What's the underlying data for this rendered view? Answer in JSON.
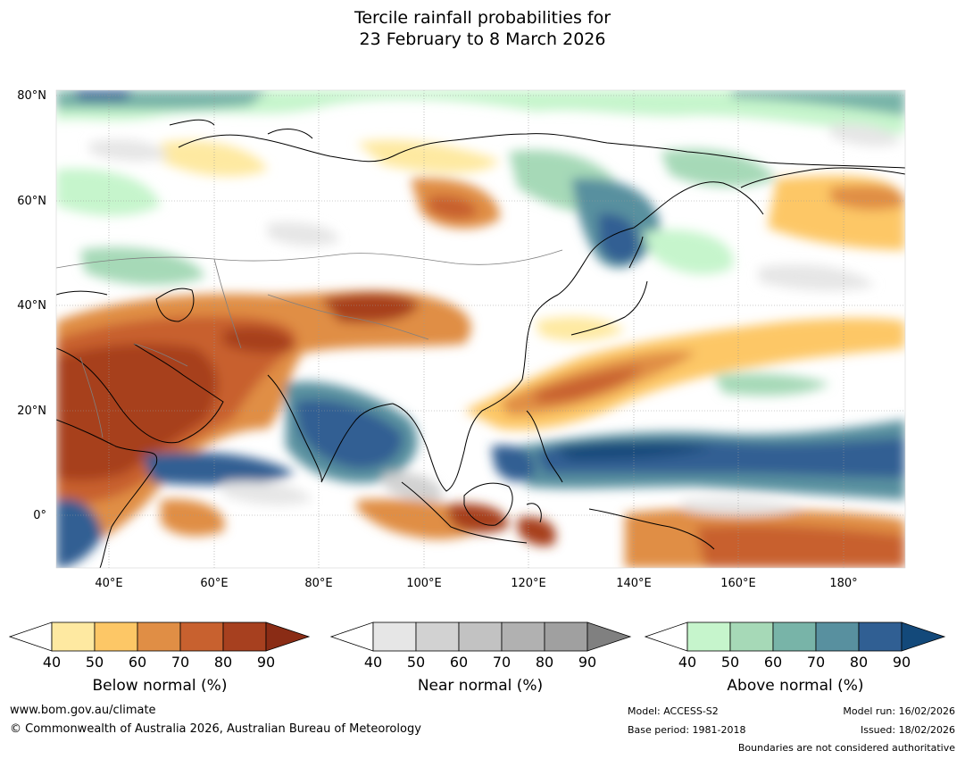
{
  "title": {
    "line1": "Tercile rainfall probabilities for",
    "line2": "23 February to 8 March 2026"
  },
  "map": {
    "latitudes": [
      "80°N",
      "60°N",
      "40°N",
      "20°N",
      "0°"
    ],
    "longitudes": [
      "40°E",
      "60°E",
      "80°E",
      "100°E",
      "120°E",
      "140°E",
      "160°E",
      "180°"
    ],
    "colors": {
      "ocean": "#ffffff",
      "coast": "#000000",
      "borders": "#808080",
      "grid": "#999999"
    }
  },
  "legend": {
    "below": {
      "title": "Below normal (%)",
      "ticks": [
        "40",
        "50",
        "60",
        "70",
        "80",
        "90"
      ],
      "colors": [
        "#ffffff",
        "#fee9a1",
        "#fdc766",
        "#e08e45",
        "#c8612f",
        "#a7401f",
        "#8a2c15"
      ]
    },
    "near": {
      "title": "Near normal (%)",
      "ticks": [
        "40",
        "50",
        "60",
        "70",
        "80",
        "90"
      ],
      "colors": [
        "#ffffff",
        "#e6e6e6",
        "#d2d2d2",
        "#c2c2c2",
        "#b1b1b1",
        "#a0a0a0",
        "#808080"
      ]
    },
    "above": {
      "title": "Above normal (%)",
      "ticks": [
        "40",
        "50",
        "60",
        "70",
        "80",
        "90"
      ],
      "colors": [
        "#ffffff",
        "#c6f5cc",
        "#a6d9b7",
        "#78b4a8",
        "#58909f",
        "#305f93",
        "#13497a"
      ]
    }
  },
  "footer": {
    "website": "www.bom.gov.au/climate",
    "copyright": "© Commonwealth of Australia 2026, Australian Bureau of Meteorology",
    "model": "Model: ACCESS-S2",
    "base_period": "Base period: 1981-2018",
    "model_run": "Model run: 16/02/2026",
    "issued": "Issued: 18/02/2026",
    "disclaimer": "Boundaries are not considered authoritative"
  }
}
